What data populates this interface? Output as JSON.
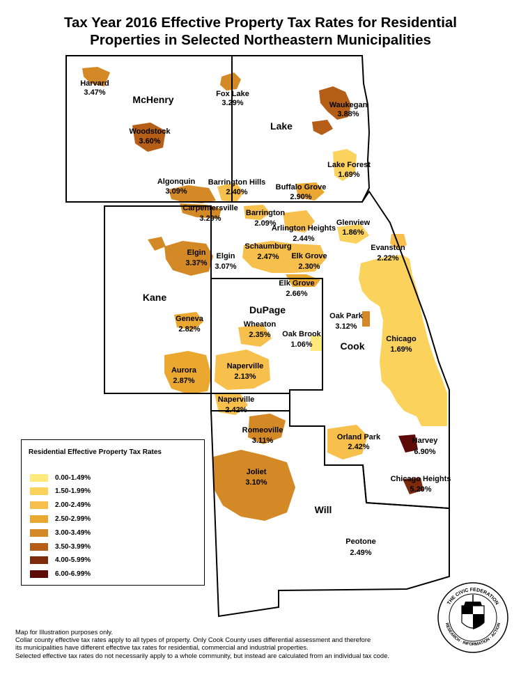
{
  "title": {
    "line1": "Tax Year 2016 Effective Property Tax Rates for Residential",
    "line2": "Properties in Selected Northeastern Municipalities"
  },
  "colors": {
    "c0": "#ffe87c",
    "c1": "#fbd35c",
    "c2": "#f7c04c",
    "c3": "#eba830",
    "c4": "#d38a26",
    "c5": "#b55e18",
    "c6": "#7e2a0c",
    "c7": "#5e0a08"
  },
  "counties": {
    "mchenry": "McHenry",
    "lake": "Lake",
    "kane": "Kane",
    "dupage": "DuPage",
    "cook": "Cook",
    "will": "Will"
  },
  "municipalities": [
    {
      "name": "Harvard",
      "rate": "3.47%",
      "cls": "c4"
    },
    {
      "name": "Fox Lake",
      "rate": "3.29%",
      "cls": "c4"
    },
    {
      "name": "Waukegan",
      "rate": "3.88%",
      "cls": "c5"
    },
    {
      "name": "Woodstock",
      "rate": "3.60%",
      "cls": "c5"
    },
    {
      "name": "Lake Forest",
      "rate": "1.69%",
      "cls": "c1"
    },
    {
      "name": "Algonquin",
      "rate": "3.09%",
      "cls": "c4"
    },
    {
      "name": "Barrington Hills",
      "rate": "2.40%",
      "cls": "c2"
    },
    {
      "name": "Buffalo Grove",
      "rate": "2.90%",
      "cls": "c3"
    },
    {
      "name": "Carpentersville",
      "rate": "3.29%",
      "cls": "c4"
    },
    {
      "name": "Barrington",
      "rate": "2.09%",
      "cls": "c2"
    },
    {
      "name": "Glenview",
      "rate": "1.86%",
      "cls": "c1"
    },
    {
      "name": "Arlington Heights",
      "rate": "2.44%",
      "cls": "c2"
    },
    {
      "name": "Elgin",
      "rate": "3.37%",
      "cls": "c4"
    },
    {
      "name": "Schaumburg",
      "rate": "2.47%",
      "cls": "c2"
    },
    {
      "name": "Evanston",
      "rate": "2.22%",
      "cls": "c2"
    },
    {
      "name": "Elgin",
      "rate": "3.07%",
      "cls": "c4"
    },
    {
      "name": "Elk Grove",
      "rate": "2.30%",
      "cls": "c2"
    },
    {
      "name": "Elk Grove",
      "rate": "2.66%",
      "cls": "c3"
    },
    {
      "name": "Oak Park",
      "rate": "3.12%",
      "cls": "c4"
    },
    {
      "name": "Geneva",
      "rate": "2.82%",
      "cls": "c3"
    },
    {
      "name": "Wheaton",
      "rate": "2.35%",
      "cls": "c2"
    },
    {
      "name": "Oak Brook",
      "rate": "1.06%",
      "cls": "c0"
    },
    {
      "name": "Chicago",
      "rate": "1.69%",
      "cls": "c1"
    },
    {
      "name": "Aurora",
      "rate": "2.87%",
      "cls": "c3"
    },
    {
      "name": "Naperville",
      "rate": "2.13%",
      "cls": "c2"
    },
    {
      "name": "Naperville",
      "rate": "2.42%",
      "cls": "c2"
    },
    {
      "name": "Romeoville",
      "rate": "3.11%",
      "cls": "c4"
    },
    {
      "name": "Orland Park",
      "rate": "2.42%",
      "cls": "c2"
    },
    {
      "name": "Harvey",
      "rate": "6.90%",
      "cls": "c7"
    },
    {
      "name": "Joliet",
      "rate": "3.10%",
      "cls": "c4"
    },
    {
      "name": "Chicago Heights",
      "rate": "5.20%",
      "cls": "c6"
    },
    {
      "name": "Peotone",
      "rate": "2.49%",
      "cls": "c2"
    }
  ],
  "legend": {
    "title": "Residential Effective Property Tax Rates",
    "items": [
      {
        "label": "0.00-1.49%",
        "color": "#ffe87c"
      },
      {
        "label": "1.50-1.99%",
        "color": "#fbd35c"
      },
      {
        "label": "2.00-2.49%",
        "color": "#f7c04c"
      },
      {
        "label": "2.50-2.99%",
        "color": "#eba830"
      },
      {
        "label": "3.00-3.49%",
        "color": "#d38a26"
      },
      {
        "label": "3.50-3.99%",
        "color": "#b55e18"
      },
      {
        "label": "4.00-5.99%",
        "color": "#7e2a0c"
      },
      {
        "label": "6.00-6.99%",
        "color": "#5e0a08"
      }
    ]
  },
  "notes": [
    "Map for Illustration purposes only.",
    "Collar county effective tax rates apply to all types of property. Only Cook County uses differential assessment and therefore",
    "its municipalities have different effective tax rates for residential, commercial and industrial properties.",
    "Selected effective tax rates do not necessarily apply to a whole community, but instead are calculated from an individual tax code."
  ],
  "seal": {
    "text": "THE CIVIC FEDERATION",
    "subtext": "RESEARCH · INFORMATION · ACTION"
  }
}
